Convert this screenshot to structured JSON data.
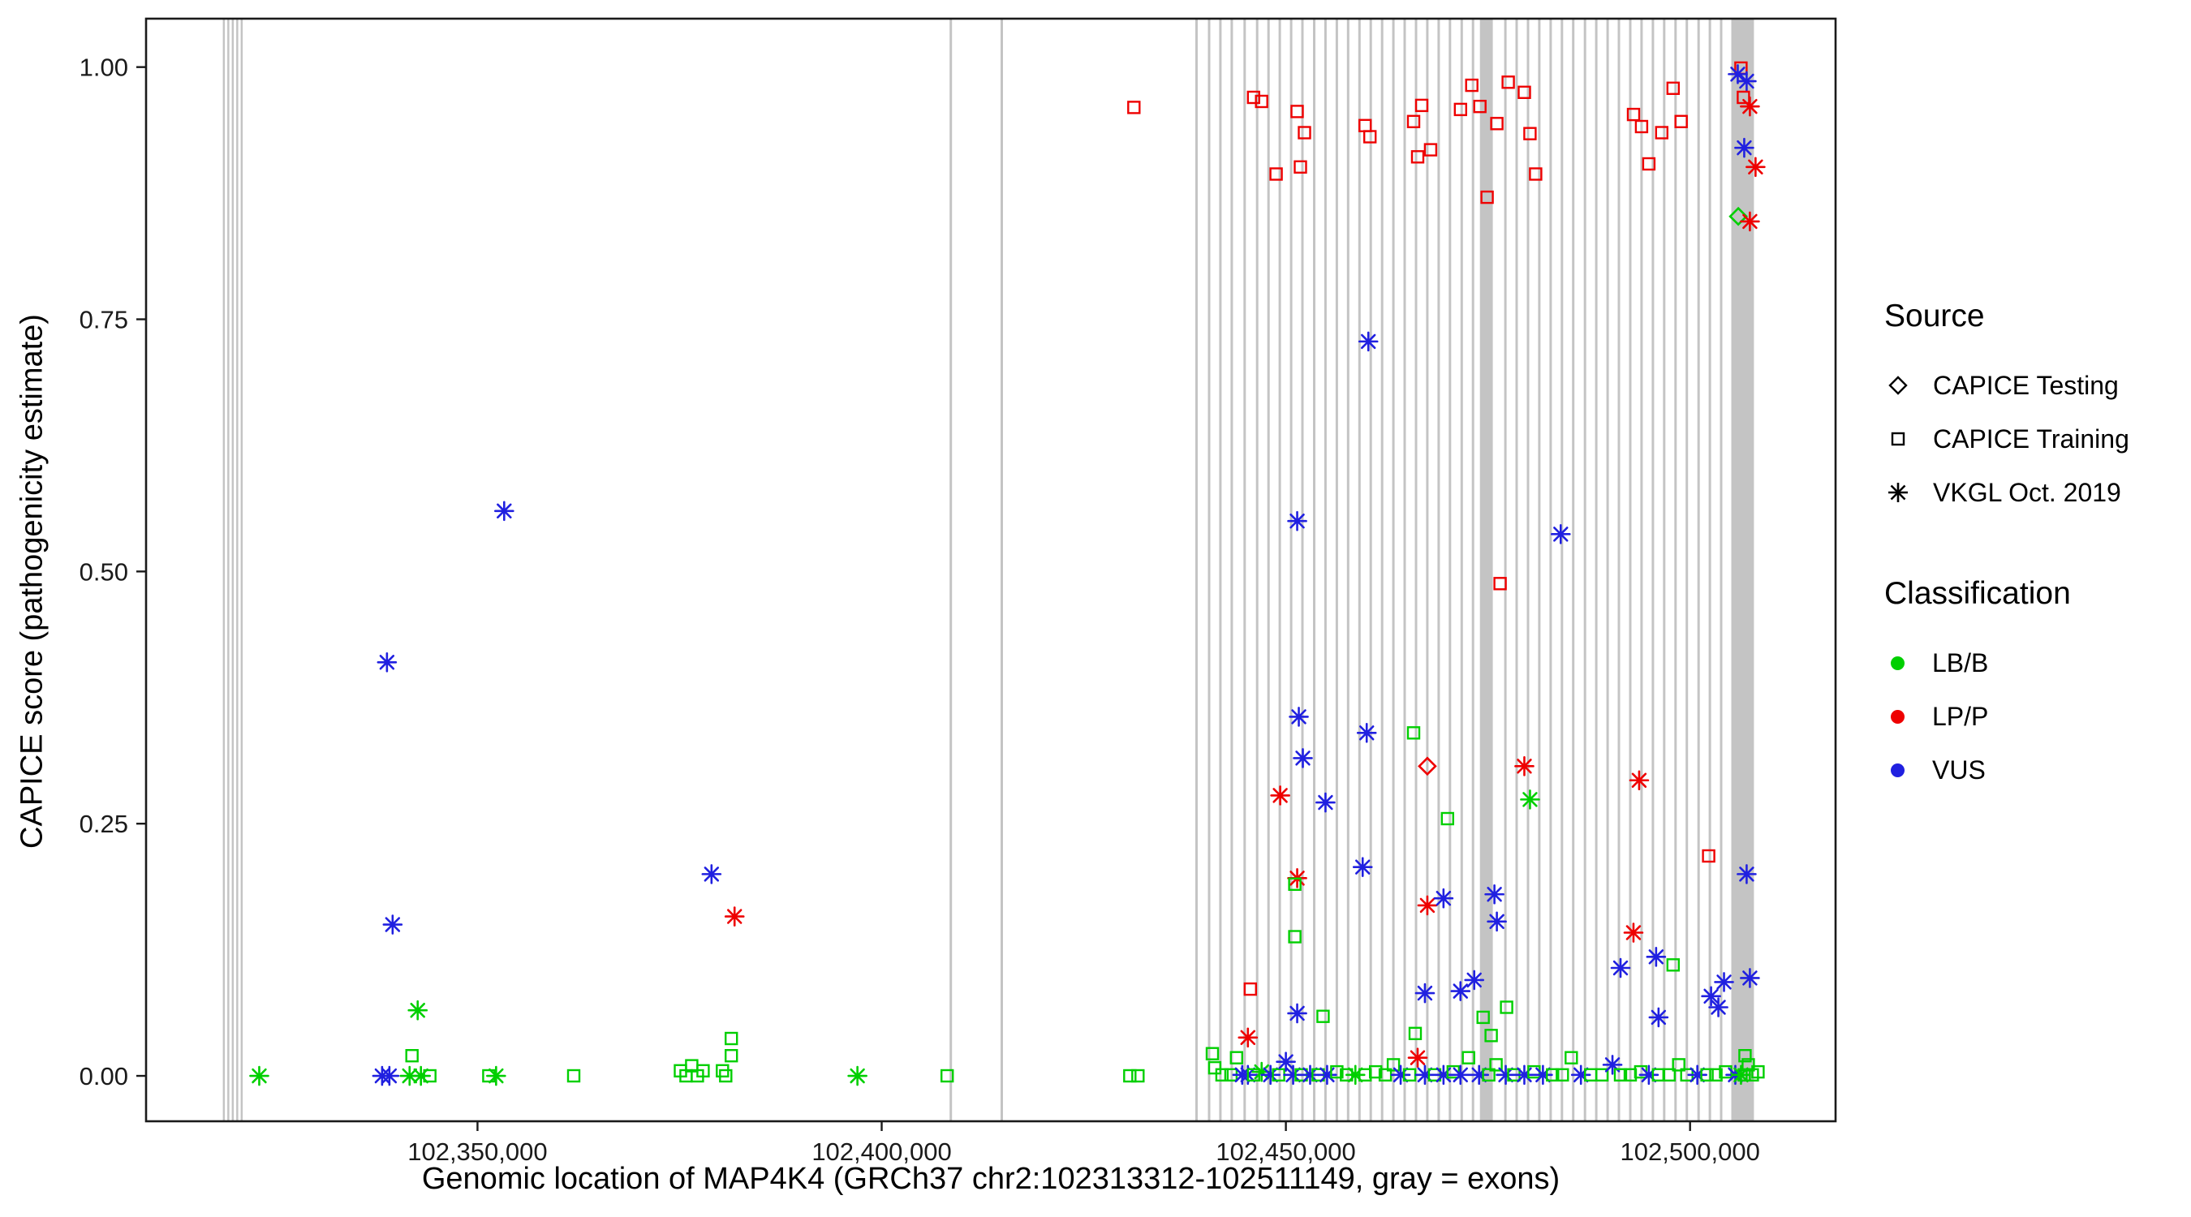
{
  "legend": {
    "source": {
      "title": "Source",
      "items": [
        {
          "label": "CAPICE Testing",
          "symbol": "diamond"
        },
        {
          "label": "CAPICE Training",
          "symbol": "square"
        },
        {
          "label": "VKGL Oct. 2019",
          "symbol": "asterisk"
        }
      ]
    },
    "classification": {
      "title": "Classification",
      "items": [
        {
          "label": "LB/B",
          "color": "#00CF00"
        },
        {
          "label": "LP/P",
          "color": "#EE0000"
        },
        {
          "label": "VUS",
          "color": "#2020E0"
        }
      ]
    }
  },
  "chart_data": {
    "type": "scatter",
    "title": "",
    "xlabel": "Genomic location of MAP4K4 (GRCh37 chr2:102313312-102511149, gray = exons)",
    "ylabel": "CAPICE score (pathogenicity estimate)",
    "xlim": [
      102309000,
      102518000
    ],
    "ylim": [
      -0.045,
      1.048
    ],
    "grid": false,
    "legend_position": "right",
    "x_ticks": [
      {
        "value": 102350000,
        "label": "102,350,000"
      },
      {
        "value": 102400000,
        "label": "102,400,000"
      },
      {
        "value": 102450000,
        "label": "102,450,000"
      },
      {
        "value": 102500000,
        "label": "102,500,000"
      }
    ],
    "y_ticks": [
      {
        "value": 0.0,
        "label": "0.00"
      },
      {
        "value": 0.25,
        "label": "0.25"
      },
      {
        "value": 0.5,
        "label": "0.50"
      },
      {
        "value": 0.75,
        "label": "0.75"
      },
      {
        "value": 1.0,
        "label": "1.00"
      }
    ],
    "class_colors": {
      "B": "#00CF00",
      "P": "#EE0000",
      "U": "#2020E0"
    },
    "class_codes": {
      "B": "LB/B",
      "P": "LP/P",
      "U": "VUS"
    },
    "source_codes": {
      "T": "CAPICE Testing",
      "R": "CAPICE Training",
      "V": "VKGL Oct. 2019"
    },
    "source_symbols": {
      "T": "diamond",
      "R": "square",
      "V": "asterisk"
    },
    "exon_color": "#C4C4C4",
    "exons": [
      [
        102318500,
        250
      ],
      [
        102319050,
        250
      ],
      [
        102319600,
        250
      ],
      [
        102320150,
        250
      ],
      [
        102320700,
        250
      ],
      [
        102408400,
        300
      ],
      [
        102414700,
        300
      ],
      [
        102438800,
        300
      ],
      [
        102440350,
        300
      ],
      [
        102441750,
        300
      ],
      [
        102443150,
        300
      ],
      [
        102444750,
        300
      ],
      [
        102446300,
        300
      ],
      [
        102447700,
        300
      ],
      [
        102449100,
        300
      ],
      [
        102450500,
        300
      ],
      [
        102451900,
        300
      ],
      [
        102453350,
        300
      ],
      [
        102454750,
        300
      ],
      [
        102456150,
        300
      ],
      [
        102457550,
        300
      ],
      [
        102458950,
        300
      ],
      [
        102460350,
        300
      ],
      [
        102461750,
        300
      ],
      [
        102463150,
        300
      ],
      [
        102464550,
        300
      ],
      [
        102465950,
        300
      ],
      [
        102467350,
        300
      ],
      [
        102468750,
        300
      ],
      [
        102470150,
        300
      ],
      [
        102471600,
        300
      ],
      [
        102473000,
        300
      ],
      [
        102474000,
        1600
      ],
      [
        102477000,
        300
      ],
      [
        102478400,
        300
      ],
      [
        102479800,
        300
      ],
      [
        102481200,
        300
      ],
      [
        102482600,
        300
      ],
      [
        102484000,
        300
      ],
      [
        102485400,
        300
      ],
      [
        102486850,
        300
      ],
      [
        102488250,
        300
      ],
      [
        102489650,
        300
      ],
      [
        102491050,
        300
      ],
      [
        102492450,
        300
      ],
      [
        102493850,
        300
      ],
      [
        102495250,
        300
      ],
      [
        102496650,
        300
      ],
      [
        102498050,
        300
      ],
      [
        102499450,
        300
      ],
      [
        102500900,
        300
      ],
      [
        102502300,
        300
      ],
      [
        102503700,
        300
      ],
      [
        102505100,
        2800
      ]
    ],
    "point_format": [
      "genomic_position",
      "capice_score",
      "source",
      "classification"
    ],
    "points": [
      [
        102323000,
        0.0,
        "V",
        "B"
      ],
      [
        102338800,
        0.41,
        "V",
        "U"
      ],
      [
        102339500,
        0.15,
        "V",
        "U"
      ],
      [
        102338200,
        0.0,
        "V",
        "U"
      ],
      [
        102339100,
        0.0,
        "V",
        "U"
      ],
      [
        102341900,
        0.02,
        "R",
        "B"
      ],
      [
        102342600,
        0.065,
        "V",
        "B"
      ],
      [
        102341600,
        0.0,
        "V",
        "B"
      ],
      [
        102343000,
        0.0,
        "V",
        "B"
      ],
      [
        102344100,
        0.0,
        "R",
        "B"
      ],
      [
        102351400,
        0.0,
        "R",
        "B"
      ],
      [
        102352300,
        0.0,
        "V",
        "B"
      ],
      [
        102353300,
        0.56,
        "V",
        "U"
      ],
      [
        102361900,
        0.0,
        "R",
        "B"
      ],
      [
        102375100,
        0.005,
        "R",
        "B"
      ],
      [
        102375800,
        0.0,
        "R",
        "B"
      ],
      [
        102376500,
        0.01,
        "R",
        "B"
      ],
      [
        102377200,
        0.0,
        "R",
        "B"
      ],
      [
        102377900,
        0.005,
        "R",
        "B"
      ],
      [
        102378950,
        0.2,
        "V",
        "U"
      ],
      [
        102381400,
        0.037,
        "R",
        "B"
      ],
      [
        102381400,
        0.02,
        "R",
        "B"
      ],
      [
        102381800,
        0.158,
        "V",
        "P"
      ],
      [
        102380300,
        0.005,
        "R",
        "B"
      ],
      [
        102380700,
        0.0,
        "R",
        "B"
      ],
      [
        102397000,
        0.0,
        "V",
        "B"
      ],
      [
        102408100,
        0.0,
        "R",
        "B"
      ],
      [
        102430700,
        0.0,
        "R",
        "B"
      ],
      [
        102431700,
        0.0,
        "R",
        "B"
      ],
      [
        102431200,
        0.96,
        "R",
        "P"
      ],
      [
        102446000,
        0.97,
        "R",
        "P"
      ],
      [
        102447000,
        0.966,
        "R",
        "P"
      ],
      [
        102451400,
        0.956,
        "R",
        "P"
      ],
      [
        102452300,
        0.935,
        "R",
        "P"
      ],
      [
        102448800,
        0.894,
        "R",
        "P"
      ],
      [
        102451800,
        0.901,
        "R",
        "P"
      ],
      [
        102459800,
        0.942,
        "R",
        "P"
      ],
      [
        102460400,
        0.931,
        "R",
        "P"
      ],
      [
        102465800,
        0.946,
        "R",
        "P"
      ],
      [
        102466800,
        0.962,
        "R",
        "P"
      ],
      [
        102467900,
        0.918,
        "R",
        "P"
      ],
      [
        102466300,
        0.911,
        "R",
        "P"
      ],
      [
        102471600,
        0.958,
        "R",
        "P"
      ],
      [
        102473000,
        0.982,
        "R",
        "P"
      ],
      [
        102474000,
        0.961,
        "R",
        "P"
      ],
      [
        102474900,
        0.871,
        "R",
        "P"
      ],
      [
        102476100,
        0.944,
        "R",
        "P"
      ],
      [
        102477500,
        0.985,
        "R",
        "P"
      ],
      [
        102479500,
        0.975,
        "R",
        "P"
      ],
      [
        102480200,
        0.934,
        "R",
        "P"
      ],
      [
        102480900,
        0.894,
        "R",
        "P"
      ],
      [
        102493000,
        0.953,
        "R",
        "P"
      ],
      [
        102494000,
        0.941,
        "R",
        "P"
      ],
      [
        102494900,
        0.904,
        "R",
        "P"
      ],
      [
        102496500,
        0.935,
        "R",
        "P"
      ],
      [
        102497900,
        0.979,
        "R",
        "P"
      ],
      [
        102498900,
        0.946,
        "R",
        "P"
      ],
      [
        102505966,
        0.852,
        "T",
        "B"
      ],
      [
        102507400,
        0.847,
        "V",
        "P"
      ],
      [
        102506300,
        0.999,
        "R",
        "P"
      ],
      [
        102505900,
        0.993,
        "V",
        "U"
      ],
      [
        102507000,
        0.986,
        "V",
        "U"
      ],
      [
        102506600,
        0.97,
        "R",
        "P"
      ],
      [
        102507400,
        0.961,
        "V",
        "P"
      ],
      [
        102506700,
        0.92,
        "V",
        "U"
      ],
      [
        102508100,
        0.901,
        "V",
        "P"
      ],
      [
        102460200,
        0.728,
        "V",
        "U"
      ],
      [
        102451400,
        0.55,
        "V",
        "U"
      ],
      [
        102476500,
        0.488,
        "R",
        "P"
      ],
      [
        102484000,
        0.537,
        "V",
        "U"
      ],
      [
        102451600,
        0.356,
        "V",
        "U"
      ],
      [
        102460000,
        0.34,
        "V",
        "U"
      ],
      [
        102465800,
        0.34,
        "R",
        "B"
      ],
      [
        102467500,
        0.307,
        "T",
        "P"
      ],
      [
        102452100,
        0.315,
        "V",
        "U"
      ],
      [
        102454900,
        0.271,
        "V",
        "U"
      ],
      [
        102449300,
        0.278,
        "V",
        "P"
      ],
      [
        102470000,
        0.255,
        "R",
        "B"
      ],
      [
        102479500,
        0.307,
        "V",
        "P"
      ],
      [
        102480200,
        0.274,
        "V",
        "B"
      ],
      [
        102493700,
        0.293,
        "V",
        "P"
      ],
      [
        102451400,
        0.196,
        "V",
        "P"
      ],
      [
        102451100,
        0.19,
        "R",
        "B"
      ],
      [
        102459500,
        0.207,
        "V",
        "U"
      ],
      [
        102467500,
        0.169,
        "V",
        "P"
      ],
      [
        102469500,
        0.176,
        "V",
        "U"
      ],
      [
        102475800,
        0.18,
        "V",
        "U"
      ],
      [
        102476100,
        0.153,
        "V",
        "U"
      ],
      [
        102451100,
        0.138,
        "R",
        "B"
      ],
      [
        102491400,
        0.107,
        "V",
        "U"
      ],
      [
        102493000,
        0.142,
        "V",
        "P"
      ],
      [
        102495800,
        0.118,
        "V",
        "U"
      ],
      [
        102497900,
        0.11,
        "R",
        "B"
      ],
      [
        102502300,
        0.218,
        "R",
        "P"
      ],
      [
        102507000,
        0.2,
        "V",
        "U"
      ],
      [
        102507400,
        0.097,
        "V",
        "U"
      ],
      [
        102504200,
        0.093,
        "V",
        "U"
      ],
      [
        102502600,
        0.079,
        "V",
        "U"
      ],
      [
        102503500,
        0.068,
        "V",
        "U"
      ],
      [
        102496100,
        0.058,
        "V",
        "U"
      ],
      [
        102467200,
        0.082,
        "V",
        "U"
      ],
      [
        102471600,
        0.084,
        "V",
        "U"
      ],
      [
        102454600,
        0.059,
        "R",
        "B"
      ],
      [
        102451400,
        0.062,
        "V",
        "U"
      ],
      [
        102445600,
        0.086,
        "R",
        "P"
      ],
      [
        102445300,
        0.038,
        "V",
        "P"
      ],
      [
        102474400,
        0.058,
        "R",
        "B"
      ],
      [
        102475400,
        0.04,
        "R",
        "B"
      ],
      [
        102466000,
        0.042,
        "R",
        "B"
      ],
      [
        102473300,
        0.095,
        "V",
        "U"
      ],
      [
        102477300,
        0.068,
        "R",
        "B"
      ],
      [
        102440900,
        0.022,
        "R",
        "B"
      ],
      [
        102441200,
        0.008,
        "R",
        "B"
      ],
      [
        102442100,
        0.001,
        "R",
        "B"
      ],
      [
        102443200,
        0.001,
        "R",
        "B"
      ],
      [
        102443900,
        0.018,
        "R",
        "B"
      ],
      [
        102444600,
        0.001,
        "V",
        "U"
      ],
      [
        102445300,
        0.001,
        "V",
        "U"
      ],
      [
        102446000,
        0.001,
        "R",
        "B"
      ],
      [
        102447000,
        0.004,
        "V",
        "B"
      ],
      [
        102448100,
        0.001,
        "V",
        "U"
      ],
      [
        102449100,
        0.001,
        "R",
        "B"
      ],
      [
        102450000,
        0.014,
        "V",
        "U"
      ],
      [
        102450900,
        0.001,
        "V",
        "U"
      ],
      [
        102451900,
        0.001,
        "R",
        "B"
      ],
      [
        102453000,
        0.001,
        "V",
        "U"
      ],
      [
        102454000,
        0.001,
        "R",
        "B"
      ],
      [
        102455100,
        0.001,
        "V",
        "U"
      ],
      [
        102456300,
        0.004,
        "R",
        "B"
      ],
      [
        102457500,
        0.001,
        "R",
        "B"
      ],
      [
        102458600,
        0.001,
        "V",
        "B"
      ],
      [
        102459800,
        0.001,
        "R",
        "B"
      ],
      [
        102461100,
        0.004,
        "R",
        "B"
      ],
      [
        102462300,
        0.001,
        "R",
        "B"
      ],
      [
        102463300,
        0.011,
        "R",
        "B"
      ],
      [
        102464200,
        0.001,
        "V",
        "U"
      ],
      [
        102465300,
        0.001,
        "R",
        "B"
      ],
      [
        102466300,
        0.018,
        "V",
        "P"
      ],
      [
        102467200,
        0.001,
        "V",
        "U"
      ],
      [
        102468400,
        0.001,
        "R",
        "B"
      ],
      [
        102469500,
        0.001,
        "V",
        "U"
      ],
      [
        102470700,
        0.004,
        "R",
        "B"
      ],
      [
        102471600,
        0.001,
        "V",
        "U"
      ],
      [
        102472600,
        0.018,
        "R",
        "B"
      ],
      [
        102473900,
        0.001,
        "V",
        "U"
      ],
      [
        102475100,
        0.001,
        "R",
        "B"
      ],
      [
        102476000,
        0.011,
        "R",
        "B"
      ],
      [
        102477200,
        0.001,
        "V",
        "U"
      ],
      [
        102478200,
        0.001,
        "R",
        "B"
      ],
      [
        102479500,
        0.001,
        "V",
        "U"
      ],
      [
        102480700,
        0.004,
        "R",
        "B"
      ],
      [
        102481800,
        0.001,
        "V",
        "U"
      ],
      [
        102483000,
        0.001,
        "R",
        "B"
      ],
      [
        102484200,
        0.001,
        "R",
        "B"
      ],
      [
        102485300,
        0.018,
        "R",
        "B"
      ],
      [
        102486500,
        0.001,
        "V",
        "U"
      ],
      [
        102487700,
        0.001,
        "R",
        "B"
      ],
      [
        102489100,
        0.001,
        "R",
        "B"
      ],
      [
        102490400,
        0.011,
        "V",
        "U"
      ],
      [
        102491400,
        0.001,
        "R",
        "B"
      ],
      [
        102492600,
        0.001,
        "R",
        "B"
      ],
      [
        102493900,
        0.004,
        "R",
        "B"
      ],
      [
        102494900,
        0.001,
        "V",
        "U"
      ],
      [
        102496100,
        0.001,
        "R",
        "B"
      ],
      [
        102497400,
        0.001,
        "R",
        "B"
      ],
      [
        102498600,
        0.011,
        "R",
        "B"
      ],
      [
        102499600,
        0.001,
        "R",
        "B"
      ],
      [
        102500900,
        0.001,
        "V",
        "U"
      ],
      [
        102502100,
        0.001,
        "R",
        "B"
      ],
      [
        102503200,
        0.001,
        "R",
        "B"
      ],
      [
        102504400,
        0.004,
        "R",
        "B"
      ],
      [
        102505600,
        0.001,
        "V",
        "U"
      ],
      [
        102506700,
        0.001,
        "R",
        "B"
      ],
      [
        102507700,
        0.001,
        "R",
        "B"
      ],
      [
        102508400,
        0.004,
        "R",
        "B"
      ],
      [
        102506800,
        0.02,
        "R",
        "B"
      ],
      [
        102507200,
        0.011,
        "R",
        "B"
      ],
      [
        102506300,
        0.001,
        "V",
        "B"
      ]
    ]
  }
}
